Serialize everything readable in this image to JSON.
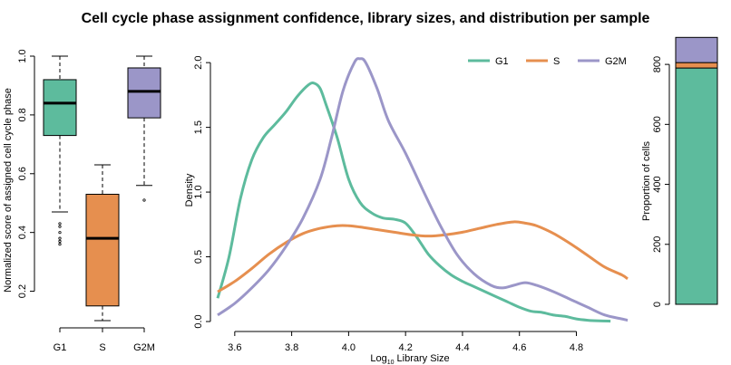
{
  "title": "Cell cycle phase assignment confidence, library sizes, and distribution per sample",
  "colors": {
    "G1": "#5dbb9d",
    "S": "#e68f4f",
    "G2M": "#9b96c8"
  },
  "chart_data": [
    {
      "type": "box",
      "ylabel": "Normalized score of assigned cell cycle phase",
      "ylim": [
        0.1,
        1.0
      ],
      "yticks": [
        "0.2",
        "0.4",
        "0.6",
        "0.8",
        "1.0"
      ],
      "categories": [
        "G1",
        "S",
        "G2M"
      ],
      "boxes": [
        {
          "name": "G1",
          "whisker_low": 0.47,
          "q1": 0.73,
          "median": 0.84,
          "q3": 0.92,
          "whisker_high": 1.0,
          "outliers": [
            0.36,
            0.37,
            0.38,
            0.4,
            0.42,
            0.43
          ]
        },
        {
          "name": "S",
          "whisker_low": 0.1,
          "q1": 0.15,
          "median": 0.38,
          "q3": 0.53,
          "whisker_high": 0.63,
          "outliers": []
        },
        {
          "name": "G2M",
          "whisker_low": 0.56,
          "q1": 0.79,
          "median": 0.88,
          "q3": 0.96,
          "whisker_high": 1.0,
          "outliers": [
            0.51
          ]
        }
      ]
    },
    {
      "type": "line",
      "xlabel": "Log10 Library Size",
      "xlabel_main": "Log",
      "xlabel_sub": "10",
      "xlabel_rest": " Library Size",
      "ylabel": "Density",
      "xlim": [
        3.54,
        4.98
      ],
      "ylim": [
        0,
        2.05
      ],
      "xticks": [
        "3.6",
        "3.8",
        "4.0",
        "4.2",
        "4.4",
        "4.6",
        "4.8"
      ],
      "yticks": [
        "0.0",
        "0.5",
        "1.0",
        "1.5",
        "2.0"
      ],
      "legend_position": "top-right",
      "series": [
        {
          "name": "G1",
          "x": [
            3.54,
            3.58,
            3.62,
            3.66,
            3.7,
            3.74,
            3.78,
            3.82,
            3.86,
            3.88,
            3.9,
            3.92,
            3.96,
            4.0,
            4.04,
            4.08,
            4.12,
            4.16,
            4.2,
            4.24,
            4.28,
            4.32,
            4.36,
            4.4,
            4.44,
            4.48,
            4.52,
            4.56,
            4.6,
            4.64,
            4.68,
            4.72,
            4.76,
            4.8,
            4.84,
            4.88,
            4.92
          ],
          "y": [
            0.18,
            0.5,
            0.95,
            1.25,
            1.42,
            1.52,
            1.62,
            1.74,
            1.83,
            1.84,
            1.8,
            1.68,
            1.42,
            1.1,
            0.92,
            0.84,
            0.8,
            0.79,
            0.76,
            0.65,
            0.52,
            0.43,
            0.36,
            0.31,
            0.27,
            0.23,
            0.19,
            0.15,
            0.11,
            0.08,
            0.07,
            0.05,
            0.04,
            0.02,
            0.01,
            0.005,
            0.003
          ]
        },
        {
          "name": "S",
          "x": [
            3.54,
            3.6,
            3.66,
            3.72,
            3.78,
            3.84,
            3.9,
            3.96,
            4.0,
            4.04,
            4.1,
            4.16,
            4.22,
            4.28,
            4.34,
            4.4,
            4.46,
            4.52,
            4.58,
            4.62,
            4.66,
            4.72,
            4.78,
            4.84,
            4.9,
            4.96,
            4.98
          ],
          "y": [
            0.23,
            0.31,
            0.41,
            0.52,
            0.61,
            0.68,
            0.72,
            0.74,
            0.74,
            0.73,
            0.71,
            0.69,
            0.67,
            0.66,
            0.67,
            0.69,
            0.72,
            0.75,
            0.77,
            0.76,
            0.74,
            0.68,
            0.6,
            0.51,
            0.42,
            0.36,
            0.33
          ]
        },
        {
          "name": "G2M",
          "x": [
            3.54,
            3.6,
            3.66,
            3.72,
            3.78,
            3.84,
            3.9,
            3.94,
            3.98,
            4.02,
            4.04,
            4.06,
            4.1,
            4.14,
            4.2,
            4.26,
            4.32,
            4.38,
            4.44,
            4.5,
            4.54,
            4.58,
            4.62,
            4.66,
            4.72,
            4.78,
            4.84,
            4.9,
            4.96,
            4.98
          ],
          "y": [
            0.05,
            0.14,
            0.26,
            0.4,
            0.58,
            0.8,
            1.1,
            1.42,
            1.78,
            2.0,
            2.03,
            2.0,
            1.8,
            1.55,
            1.3,
            1.02,
            0.75,
            0.52,
            0.37,
            0.28,
            0.26,
            0.28,
            0.3,
            0.28,
            0.23,
            0.17,
            0.11,
            0.05,
            0.02,
            0.01
          ]
        }
      ]
    },
    {
      "type": "stacked_bar",
      "ylabel": "Proportion of cells",
      "ylim": [
        0,
        900
      ],
      "yticks": [
        "0",
        "200",
        "400",
        "600",
        "800"
      ],
      "segments": [
        {
          "name": "G1",
          "value": 788
        },
        {
          "name": "S",
          "value": 18
        },
        {
          "name": "G2M",
          "value": 84
        }
      ]
    }
  ]
}
